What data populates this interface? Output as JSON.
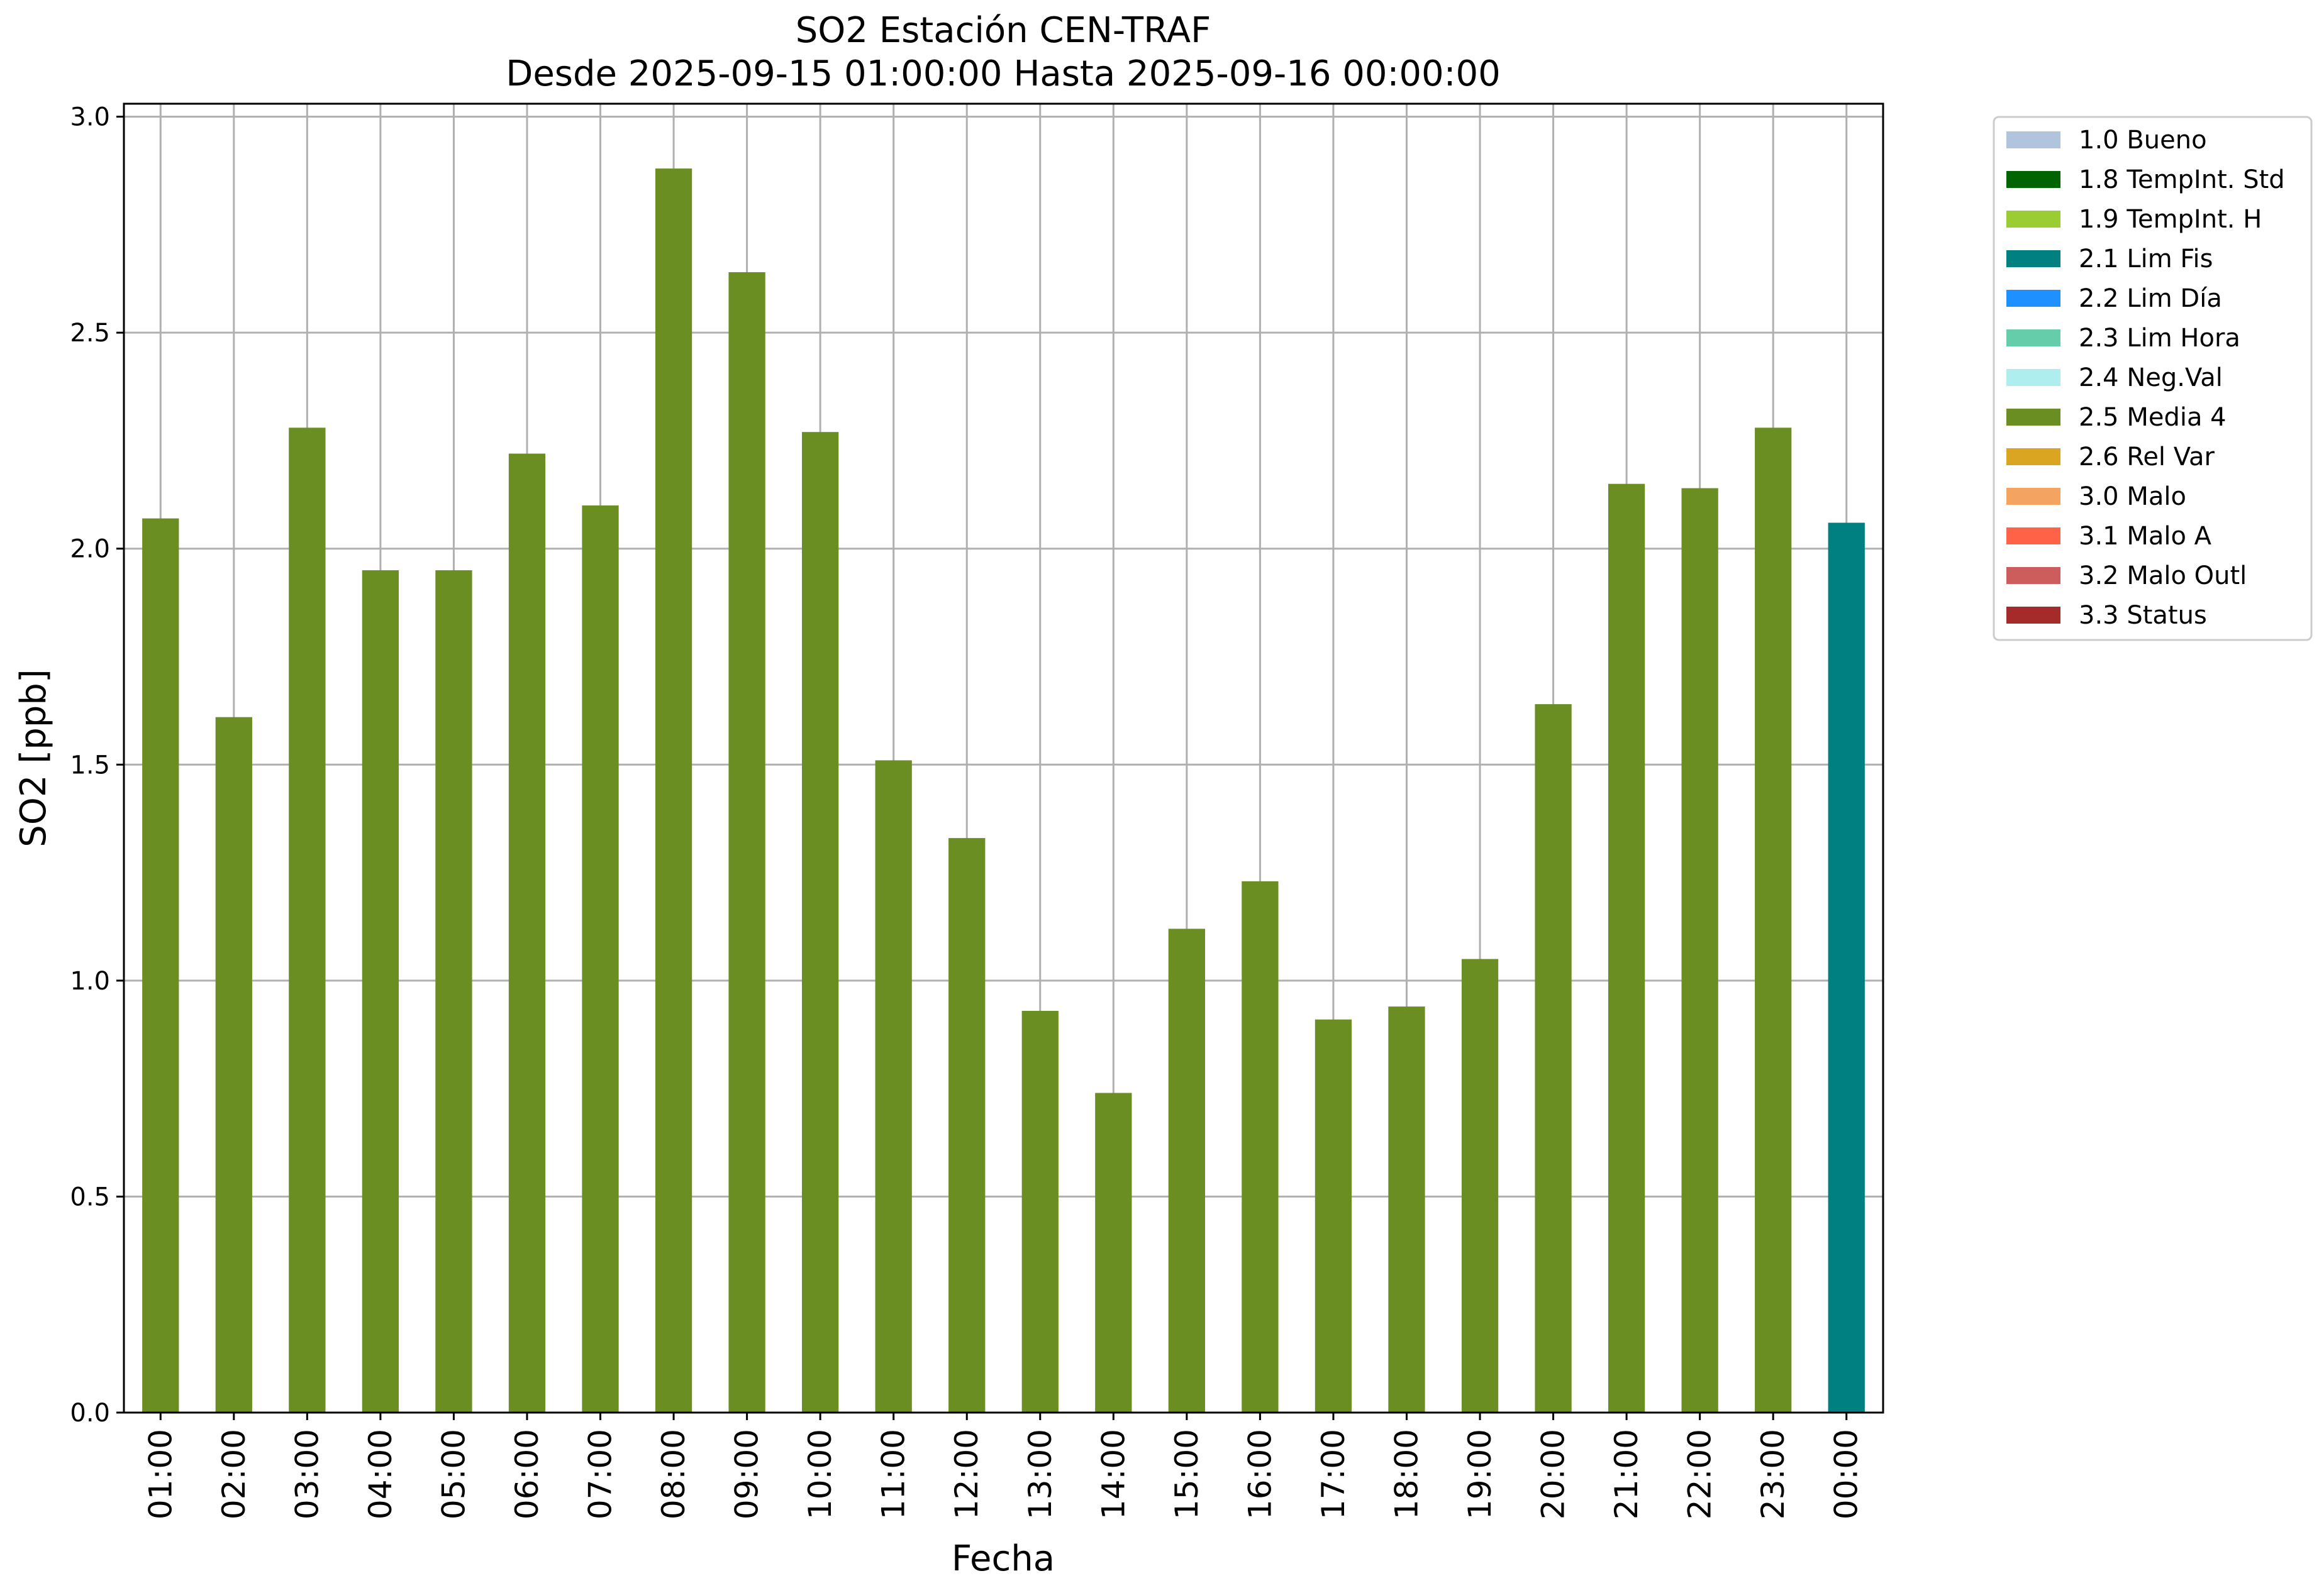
{
  "chart_data": {
    "type": "bar",
    "title": "SO2 Estación CEN-TRAF",
    "subtitle": "Desde 2025-09-15 01:00:00 Hasta 2025-09-16 00:00:00",
    "xlabel": "Fecha",
    "ylabel": "SO2 [ppb]",
    "ylim": [
      0,
      3.03
    ],
    "yticks": [
      "0.0",
      "0.5",
      "1.0",
      "1.5",
      "2.0",
      "2.5",
      "3.0"
    ],
    "grid": true,
    "legend_position": "outside-top-right",
    "categories": [
      "01:00",
      "02:00",
      "03:00",
      "04:00",
      "05:00",
      "06:00",
      "07:00",
      "08:00",
      "09:00",
      "10:00",
      "11:00",
      "12:00",
      "13:00",
      "14:00",
      "15:00",
      "16:00",
      "17:00",
      "18:00",
      "19:00",
      "20:00",
      "21:00",
      "22:00",
      "23:00",
      "00:00"
    ],
    "values": [
      2.07,
      1.61,
      2.28,
      1.95,
      1.95,
      2.22,
      2.1,
      2.88,
      2.64,
      2.27,
      1.51,
      1.33,
      0.93,
      0.74,
      1.12,
      1.23,
      0.91,
      0.94,
      1.05,
      1.64,
      2.15,
      2.14,
      2.28,
      2.06
    ],
    "flags": [
      "2.5 Media 4",
      "2.5 Media 4",
      "2.5 Media 4",
      "2.5 Media 4",
      "2.5 Media 4",
      "2.5 Media 4",
      "2.5 Media 4",
      "2.5 Media 4",
      "2.5 Media 4",
      "2.5 Media 4",
      "2.5 Media 4",
      "2.5 Media 4",
      "2.5 Media 4",
      "2.5 Media 4",
      "2.5 Media 4",
      "2.5 Media 4",
      "2.5 Media 4",
      "2.5 Media 4",
      "2.5 Media 4",
      "2.5 Media 4",
      "2.5 Media 4",
      "2.5 Media 4",
      "2.5 Media 4",
      "2.1 Lim Fis"
    ],
    "legend": [
      {
        "label": "1.0 Bueno",
        "color": "#b0c4de"
      },
      {
        "label": "1.8 TempInt. Std",
        "color": "#006400"
      },
      {
        "label": "1.9 TempInt. H",
        "color": "#9acd32"
      },
      {
        "label": "2.1 Lim Fis",
        "color": "#008080"
      },
      {
        "label": "2.2 Lim Día",
        "color": "#1e90ff"
      },
      {
        "label": "2.3 Lim Hora",
        "color": "#66cdaa"
      },
      {
        "label": "2.4 Neg.Val",
        "color": "#afeeee"
      },
      {
        "label": "2.5 Media 4",
        "color": "#6b8e23"
      },
      {
        "label": "2.6 Rel Var",
        "color": "#daa520"
      },
      {
        "label": "3.0 Malo",
        "color": "#f4a460"
      },
      {
        "label": "3.1 Malo A",
        "color": "#ff6347"
      },
      {
        "label": "3.2 Malo Outl",
        "color": "#cd5c5c"
      },
      {
        "label": "3.3 Status",
        "color": "#a52a2a"
      }
    ]
  }
}
